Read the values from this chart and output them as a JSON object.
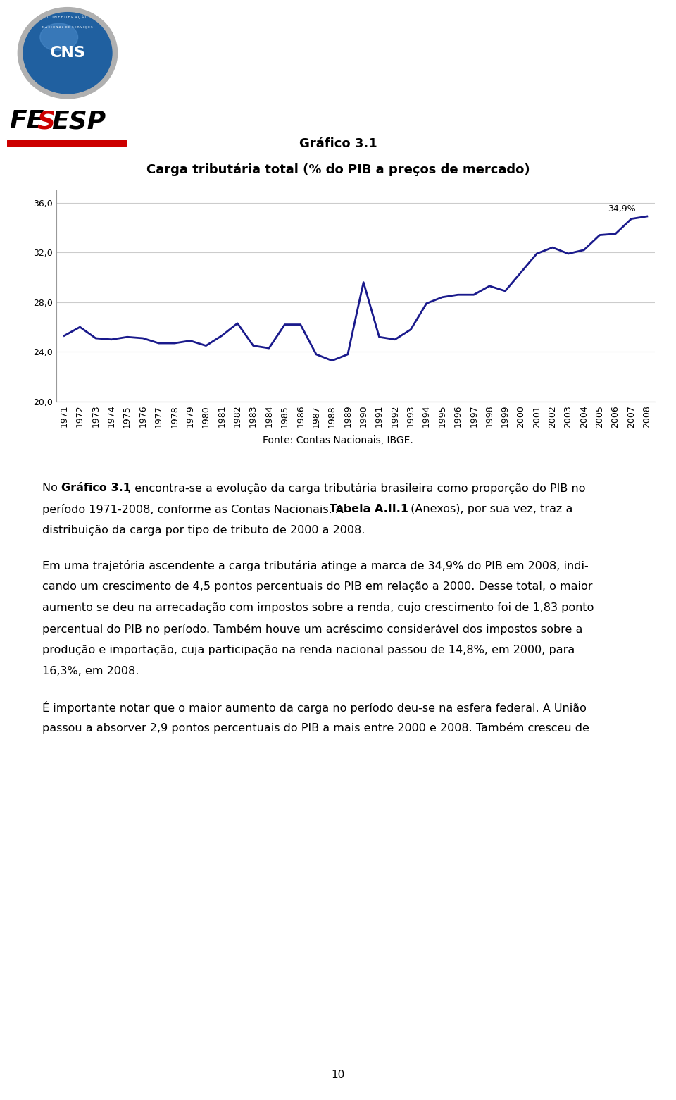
{
  "title1": "Gráfico 3.1",
  "title2": "Carga tributária total (% do PIB a preços de mercado)",
  "years": [
    1971,
    1972,
    1973,
    1974,
    1975,
    1976,
    1977,
    1978,
    1979,
    1980,
    1981,
    1982,
    1983,
    1984,
    1985,
    1986,
    1987,
    1988,
    1989,
    1990,
    1991,
    1992,
    1993,
    1994,
    1995,
    1996,
    1997,
    1998,
    1999,
    2000,
    2001,
    2002,
    2003,
    2004,
    2005,
    2006,
    2007,
    2008
  ],
  "values": [
    25.3,
    26.0,
    25.1,
    25.0,
    25.2,
    25.1,
    24.7,
    24.7,
    24.9,
    24.5,
    25.3,
    26.3,
    24.5,
    24.3,
    26.2,
    26.2,
    23.8,
    23.3,
    23.8,
    29.6,
    25.2,
    25.0,
    25.8,
    27.9,
    28.4,
    28.6,
    28.6,
    29.3,
    28.9,
    30.4,
    31.9,
    32.4,
    31.9,
    32.2,
    33.4,
    33.5,
    34.7,
    34.9
  ],
  "line_color": "#1a1a8c",
  "line_width": 2.0,
  "yticks": [
    20.0,
    24.0,
    28.0,
    32.0,
    36.0
  ],
  "ylim": [
    20.0,
    37.0
  ],
  "annotation_text": "34,9%",
  "annotation_year": 2008,
  "annotation_value": 34.9,
  "source_text": "Fonte: Contas Nacionais, IBGE.",
  "page_number": "10",
  "grid_color": "#cccccc",
  "background_color": "#ffffff",
  "text_color": "#000000",
  "body_fontsize": 11.5,
  "tick_fontsize": 9
}
